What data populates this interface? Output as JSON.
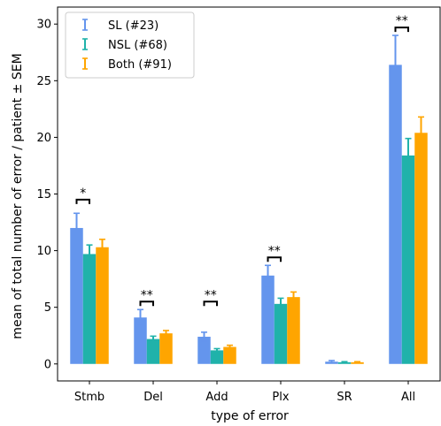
{
  "chart_data": {
    "type": "bar",
    "xlabel": "type of error",
    "ylabel": "mean of total number of error / patient ± SEM",
    "ylim": [
      -1.5,
      31.5
    ],
    "yticks": [
      0,
      5,
      10,
      15,
      20,
      25,
      30
    ],
    "categories": [
      "Stmb",
      "Del",
      "Add",
      "Plx",
      "SR",
      "All"
    ],
    "legend_position": "top-left",
    "series": [
      {
        "name": "SL (#23)",
        "color": "#6495ED",
        "values": [
          12.0,
          4.1,
          2.4,
          7.8,
          0.2,
          26.4
        ],
        "errors": [
          1.3,
          0.7,
          0.4,
          0.9,
          0.1,
          2.6
        ]
      },
      {
        "name": "NSL (#68)",
        "color": "#20B2AA",
        "values": [
          9.7,
          2.2,
          1.2,
          5.3,
          0.15,
          18.4
        ],
        "errors": [
          0.8,
          0.25,
          0.15,
          0.5,
          0.05,
          1.5
        ]
      },
      {
        "name": "Both (#91)",
        "color": "#FFA500",
        "values": [
          10.3,
          2.7,
          1.5,
          5.9,
          0.15,
          20.4
        ],
        "errors": [
          0.7,
          0.25,
          0.15,
          0.45,
          0.05,
          1.4
        ]
      }
    ],
    "significance": [
      {
        "category_index": 0,
        "label": "*",
        "y": 14.5
      },
      {
        "category_index": 1,
        "label": "**",
        "y": 5.5
      },
      {
        "category_index": 2,
        "label": "**",
        "y": 5.5
      },
      {
        "category_index": 3,
        "label": "**",
        "y": 9.4
      },
      {
        "category_index": 5,
        "label": "**",
        "y": 29.7
      }
    ]
  }
}
